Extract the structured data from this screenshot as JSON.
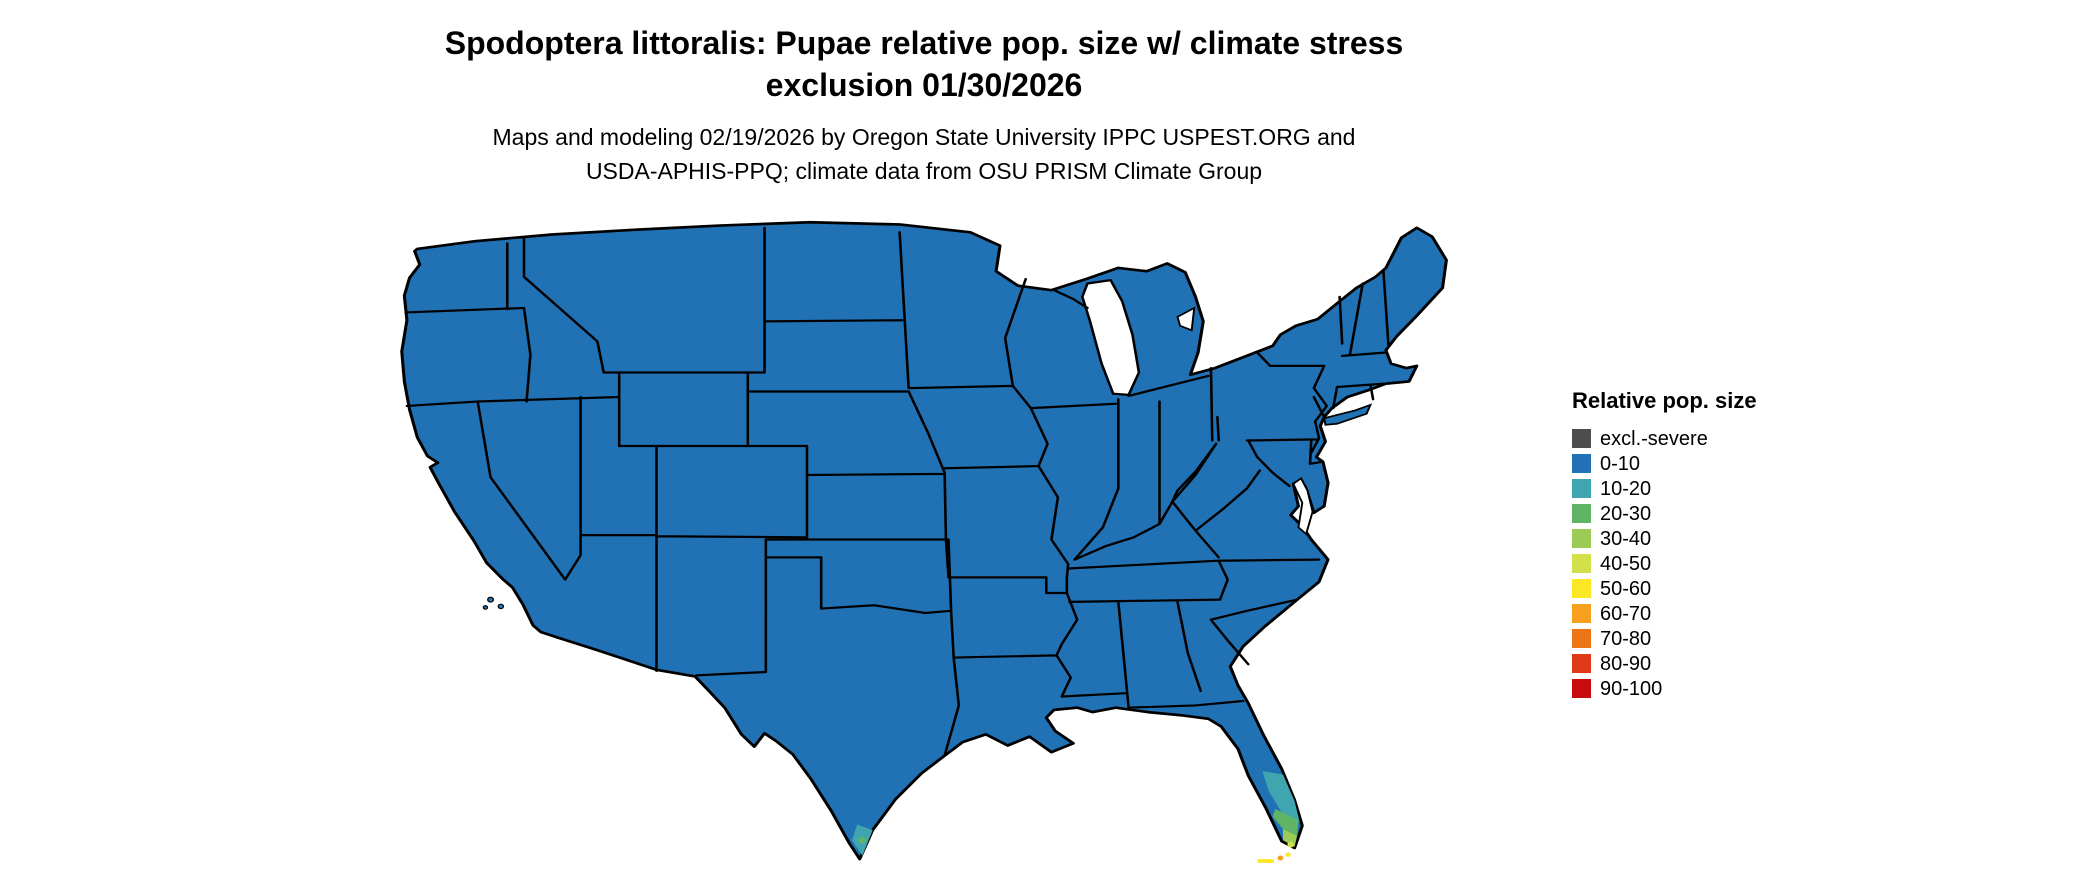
{
  "title": {
    "line1": "Spodoptera littoralis: Pupae relative pop. size w/ climate stress",
    "line2": "exclusion 01/30/2026"
  },
  "subtitle": {
    "line1": "Maps and modeling 02/19/2026 by Oregon State University IPPC USPEST.ORG and",
    "line2": "USDA-APHIS-PPQ; climate data from OSU PRISM Climate Group"
  },
  "legend": {
    "title": "Relative pop. size",
    "items": [
      {
        "label": "excl.-severe",
        "color": "#4D4D4D"
      },
      {
        "label": "0-10",
        "color": "#2171B5"
      },
      {
        "label": "10-20",
        "color": "#3FA5AF"
      },
      {
        "label": "20-30",
        "color": "#5FB466"
      },
      {
        "label": "30-40",
        "color": "#9BCA55"
      },
      {
        "label": "40-50",
        "color": "#D2E04A"
      },
      {
        "label": "50-60",
        "color": "#FCE724"
      },
      {
        "label": "60-70",
        "color": "#F6A01E"
      },
      {
        "label": "70-80",
        "color": "#ED7417"
      },
      {
        "label": "80-90",
        "color": "#DF3A16"
      },
      {
        "label": "90-100",
        "color": "#C70B0E"
      }
    ]
  },
  "map": {
    "border_color": "#000000",
    "water_color": "#FFFFFF",
    "dominant_class": "0-10"
  },
  "chart_data": {
    "type": "choropleth_map",
    "title": "Spodoptera littoralis: Pupae relative pop. size w/ climate stress exclusion 01/30/2026",
    "region": "Continental United States (state boundaries shown)",
    "variable": "Relative pop. size",
    "classes": [
      "excl.-severe",
      "0-10",
      "10-20",
      "20-30",
      "30-40",
      "40-50",
      "50-60",
      "60-70",
      "70-80",
      "80-90",
      "90-100"
    ],
    "colors": [
      "#4D4D4D",
      "#2171B5",
      "#3FA5AF",
      "#5FB466",
      "#9BCA55",
      "#D2E04A",
      "#FCE724",
      "#F6A01E",
      "#ED7417",
      "#DF3A16",
      "#C70B0E"
    ],
    "values": [
      {
        "area": "Nearly all of the continental US",
        "class": "0-10"
      },
      {
        "area": "Southern tip of Texas (Rio Grande Valley)",
        "class": "10-30"
      },
      {
        "area": "Southern Florida peninsula",
        "class": "10-40"
      },
      {
        "area": "Extreme southern Florida tip",
        "class": "40-50"
      },
      {
        "area": "Florida Keys",
        "class": "50-70"
      }
    ],
    "legend_position": "right",
    "grid": false
  }
}
